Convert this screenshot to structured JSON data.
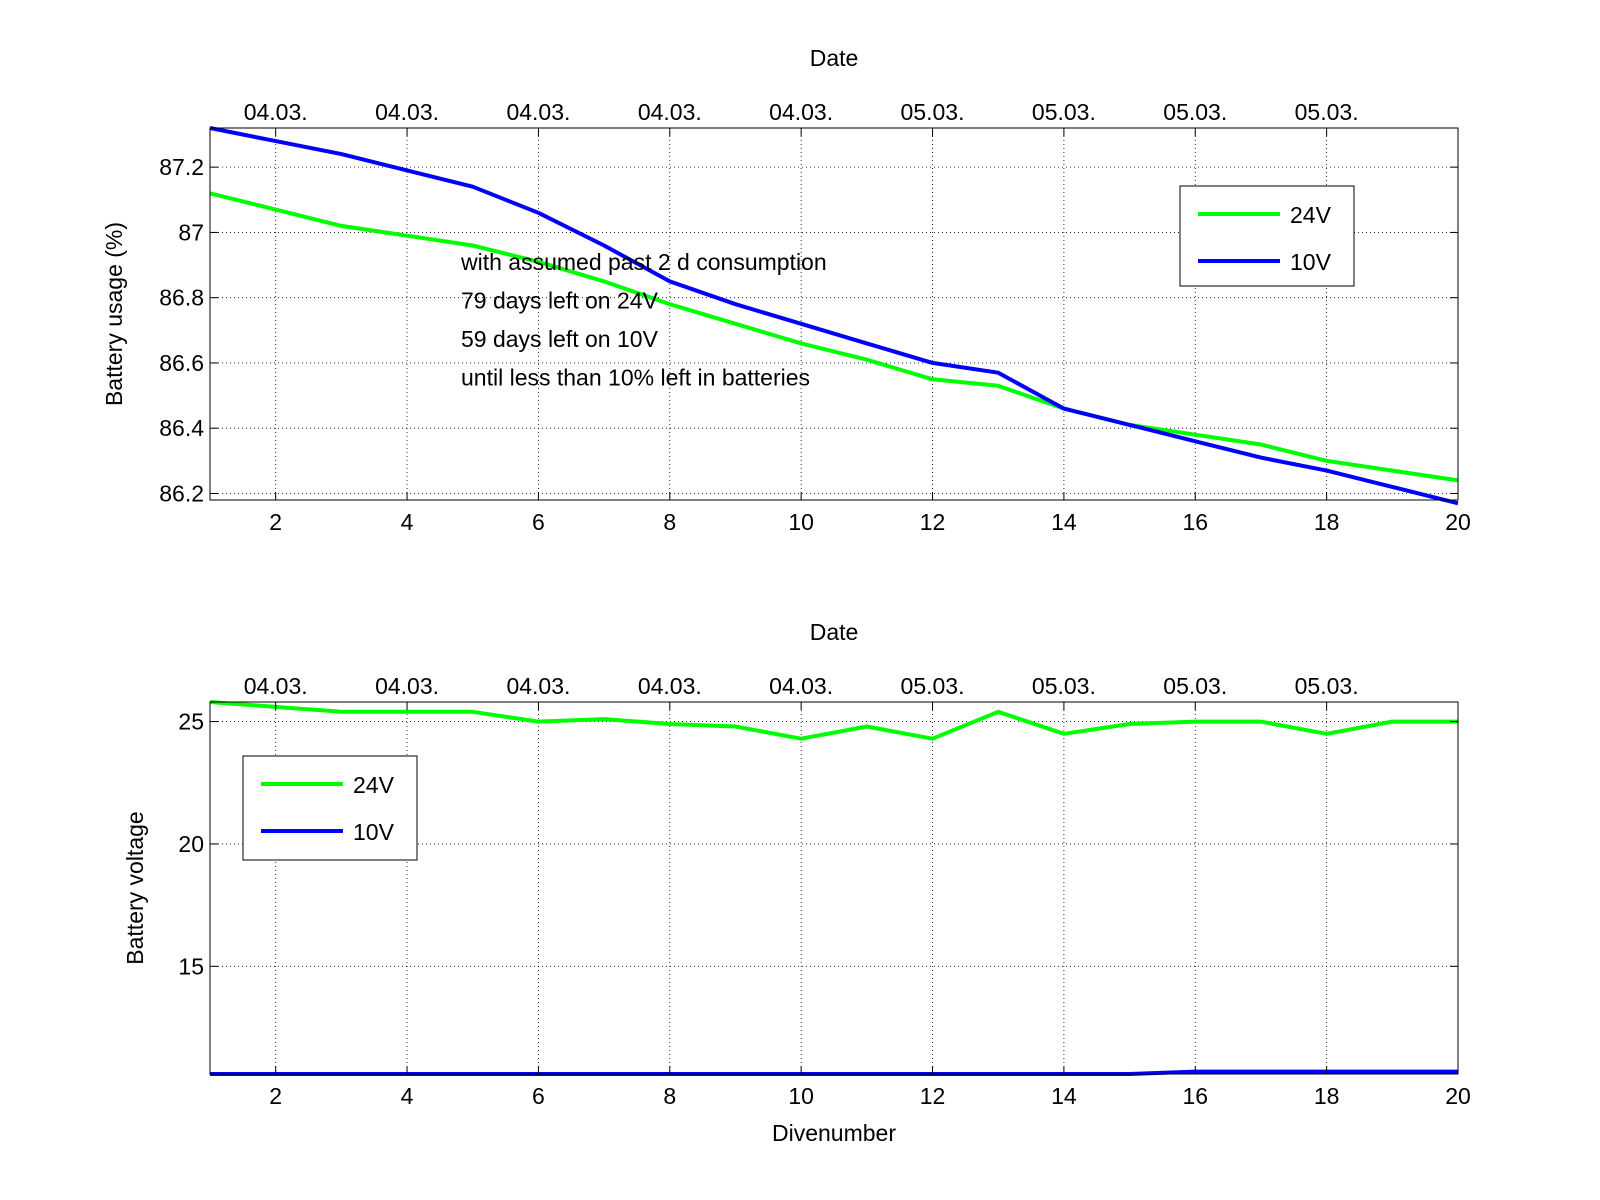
{
  "chart_data": [
    {
      "type": "line",
      "xlabel": "",
      "ylabel": "Battery usage (%)",
      "top_axis_label": "Date",
      "top_tick_labels": [
        "04.03.",
        "04.03.",
        "04.03.",
        "04.03.",
        "04.03.",
        "05.03.",
        "05.03.",
        "05.03.",
        "05.03."
      ],
      "top_tick_positions": [
        2,
        4,
        6,
        8,
        10,
        12,
        14,
        16,
        18
      ],
      "xlim": [
        1,
        20
      ],
      "ylim": [
        86.18,
        87.32
      ],
      "xticks": [
        2,
        4,
        6,
        8,
        10,
        12,
        14,
        16,
        18,
        20
      ],
      "yticks": [
        86.2,
        86.4,
        86.6,
        86.8,
        87,
        87.2
      ],
      "ytick_labels": [
        "86.2",
        "86.4",
        "86.6",
        "86.8",
        "87",
        "87.2"
      ],
      "grid": true,
      "legend_position": "top-right",
      "x": [
        1,
        2,
        3,
        4,
        5,
        6,
        7,
        8,
        9,
        10,
        11,
        12,
        13,
        14,
        15,
        16,
        17,
        18,
        19,
        20
      ],
      "series": [
        {
          "name": "24V",
          "color": "#00ff00",
          "values": [
            87.12,
            87.07,
            87.02,
            86.99,
            86.96,
            86.91,
            86.85,
            86.78,
            86.72,
            86.66,
            86.61,
            86.55,
            86.53,
            86.46,
            86.41,
            86.38,
            86.35,
            86.3,
            86.27,
            86.24
          ]
        },
        {
          "name": "10V",
          "color": "#0000ff",
          "values": [
            87.32,
            87.28,
            87.24,
            87.19,
            87.14,
            87.06,
            86.96,
            86.85,
            86.78,
            86.72,
            86.66,
            86.6,
            86.57,
            86.46,
            86.41,
            86.36,
            86.31,
            86.27,
            86.22,
            86.17
          ]
        }
      ],
      "annotation": [
        "with assumed past 2 d consumption",
        "79 days left on 24V",
        "59 days left on 10V",
        "until less than 10% left in batteries"
      ]
    },
    {
      "type": "line",
      "xlabel": "Divenumber",
      "ylabel": "Battery voltage",
      "top_axis_label": "Date",
      "top_tick_labels": [
        "04.03.",
        "04.03.",
        "04.03.",
        "04.03.",
        "04.03.",
        "05.03.",
        "05.03.",
        "05.03.",
        "05.03."
      ],
      "top_tick_positions": [
        2,
        4,
        6,
        8,
        10,
        12,
        14,
        16,
        18
      ],
      "xlim": [
        1,
        20
      ],
      "ylim": [
        10.6,
        25.8
      ],
      "xticks": [
        2,
        4,
        6,
        8,
        10,
        12,
        14,
        16,
        18,
        20
      ],
      "yticks": [
        15,
        20,
        25
      ],
      "ytick_labels": [
        "15",
        "20",
        "25"
      ],
      "grid": true,
      "legend_position": "top-left",
      "x": [
        1,
        2,
        3,
        4,
        5,
        6,
        7,
        8,
        9,
        10,
        11,
        12,
        13,
        14,
        15,
        16,
        17,
        18,
        19,
        20
      ],
      "series": [
        {
          "name": "24V",
          "color": "#00ff00",
          "values": [
            25.8,
            25.6,
            25.4,
            25.4,
            25.4,
            25.0,
            25.1,
            24.9,
            24.8,
            24.3,
            24.8,
            24.3,
            25.4,
            24.5,
            24.9,
            25.0,
            25.0,
            24.5,
            25.0,
            25.0
          ]
        },
        {
          "name": "10V",
          "color": "#0000ff",
          "values": [
            10.6,
            10.6,
            10.6,
            10.6,
            10.6,
            10.6,
            10.6,
            10.6,
            10.6,
            10.6,
            10.6,
            10.6,
            10.6,
            10.6,
            10.6,
            10.7,
            10.7,
            10.7,
            10.7,
            10.7
          ]
        }
      ]
    }
  ]
}
